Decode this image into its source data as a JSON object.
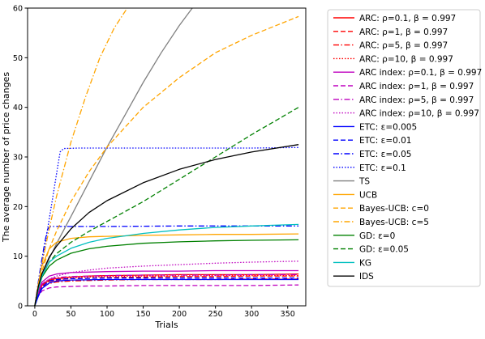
{
  "chart_data": {
    "type": "line",
    "title": "",
    "xlabel": "Trials",
    "ylabel": "The average number of price changes",
    "xlim": [
      -10,
      375
    ],
    "ylim": [
      0,
      60
    ],
    "x_ticks": [
      0,
      50,
      100,
      150,
      200,
      250,
      300,
      350
    ],
    "y_ticks": [
      0,
      10,
      20,
      30,
      40,
      50,
      60
    ],
    "x_tick_labels": [
      "0",
      "50",
      "100",
      "150",
      "200",
      "250",
      "300",
      "350"
    ],
    "y_tick_labels": [
      "0",
      "10",
      "20",
      "30",
      "40",
      "50",
      "60"
    ],
    "grid": false,
    "legend_position": "outside right",
    "series": [
      {
        "name": "ARC: ρ=0.1, β = 0.997",
        "color": "#ff0000",
        "dash": "solid",
        "x": [
          0,
          5,
          10,
          20,
          30,
          50,
          75,
          100,
          150,
          200,
          250,
          300,
          365
        ],
        "y": [
          0,
          2.6,
          4.2,
          5.2,
          5.5,
          5.8,
          6.0,
          6.1,
          6.2,
          6.3,
          6.3,
          6.3,
          6.4
        ]
      },
      {
        "name": "ARC: ρ=1, β = 0.997",
        "color": "#ff0000",
        "dash": "dashed",
        "x": [
          0,
          5,
          10,
          20,
          30,
          50,
          75,
          100,
          150,
          200,
          250,
          300,
          365
        ],
        "y": [
          0,
          2.5,
          4.0,
          4.9,
          5.2,
          5.5,
          5.6,
          5.7,
          5.8,
          5.9,
          5.9,
          6.0,
          6.0
        ]
      },
      {
        "name": "ARC: ρ=5, β = 0.997",
        "color": "#ff0000",
        "dash": "dashdot",
        "x": [
          0,
          5,
          10,
          20,
          30,
          50,
          75,
          100,
          150,
          200,
          250,
          300,
          365
        ],
        "y": [
          0,
          2.3,
          3.8,
          4.5,
          4.8,
          5.0,
          5.1,
          5.2,
          5.3,
          5.3,
          5.3,
          5.4,
          5.4
        ]
      },
      {
        "name": "ARC: ρ=10, β = 0.997",
        "color": "#ff0000",
        "dash": "dotted",
        "x": [
          0,
          5,
          10,
          20,
          30,
          50,
          75,
          100,
          150,
          200,
          250,
          300,
          365
        ],
        "y": [
          0,
          2.5,
          4.1,
          5.0,
          5.3,
          5.6,
          5.8,
          5.9,
          6.0,
          6.0,
          6.1,
          6.1,
          6.1
        ]
      },
      {
        "name": "ARC index: ρ=0.1, β = 0.997",
        "color": "#bf00bf",
        "dash": "solid",
        "x": [
          0,
          5,
          10,
          20,
          30,
          50,
          75,
          100,
          150,
          200,
          250,
          300,
          365
        ],
        "y": [
          0,
          3.0,
          4.8,
          6.0,
          6.4,
          6.7,
          6.8,
          6.9,
          7.0,
          7.0,
          7.1,
          7.1,
          7.1
        ]
      },
      {
        "name": "ARC index: ρ=1, β = 0.997",
        "color": "#bf00bf",
        "dash": "dashed",
        "x": [
          0,
          5,
          10,
          20,
          30,
          50,
          75,
          100,
          150,
          200,
          250,
          300,
          365
        ],
        "y": [
          0,
          2.0,
          3.0,
          3.6,
          3.8,
          3.9,
          4.0,
          4.0,
          4.1,
          4.1,
          4.1,
          4.1,
          4.2
        ]
      },
      {
        "name": "ARC index: ρ=5, β = 0.997",
        "color": "#bf00bf",
        "dash": "dashdot",
        "x": [
          0,
          5,
          10,
          20,
          30,
          50,
          75,
          100,
          150,
          200,
          250,
          300,
          365
        ],
        "y": [
          0,
          2.7,
          4.4,
          5.4,
          5.7,
          5.9,
          6.0,
          6.1,
          6.2,
          6.2,
          6.2,
          6.3,
          6.3
        ]
      },
      {
        "name": "ARC index: ρ=10, β = 0.997",
        "color": "#bf00bf",
        "dash": "dotted",
        "x": [
          0,
          5,
          10,
          20,
          30,
          50,
          75,
          100,
          150,
          200,
          250,
          300,
          365
        ],
        "y": [
          0,
          2.8,
          4.4,
          5.4,
          6.0,
          6.7,
          7.2,
          7.6,
          8.0,
          8.3,
          8.6,
          8.8,
          9.0
        ]
      },
      {
        "name": "ETC: ε=0.005",
        "color": "#0000ff",
        "dash": "solid",
        "x": [
          0,
          5,
          10,
          20,
          30,
          50,
          100,
          200,
          300,
          365
        ],
        "y": [
          0,
          2.0,
          3.5,
          4.6,
          5.0,
          5.2,
          5.3,
          5.3,
          5.3,
          5.3
        ]
      },
      {
        "name": "ETC: ε=0.01",
        "color": "#0000ff",
        "dash": "dashed",
        "x": [
          0,
          5,
          10,
          20,
          30,
          50,
          100,
          200,
          300,
          365
        ],
        "y": [
          0,
          2.2,
          3.8,
          5.0,
          5.3,
          5.5,
          5.6,
          5.6,
          5.6,
          5.6
        ]
      },
      {
        "name": "ETC: ε=0.05",
        "color": "#0000ff",
        "dash": "dashdot",
        "x": [
          0,
          3,
          6,
          10,
          14,
          18,
          22,
          30,
          50,
          100,
          200,
          300,
          365
        ],
        "y": [
          0,
          3.0,
          6.0,
          9.5,
          13.0,
          15.5,
          16.0,
          16.0,
          16.0,
          16.0,
          16.1,
          16.1,
          16.1
        ]
      },
      {
        "name": "ETC: ε=0.1",
        "color": "#0000ff",
        "dash": "dotted",
        "x": [
          0,
          5,
          10,
          15,
          20,
          25,
          30,
          35,
          40,
          60,
          100,
          200,
          300,
          365
        ],
        "y": [
          0,
          4.0,
          8.5,
          13.0,
          17.5,
          22.0,
          26.5,
          31.0,
          31.7,
          31.8,
          31.8,
          31.8,
          31.8,
          31.9
        ]
      },
      {
        "name": "TS",
        "color": "#808080",
        "dash": "solid",
        "x": [
          0,
          5,
          10,
          20,
          30,
          50,
          75,
          100,
          125,
          150,
          175,
          200,
          218
        ],
        "y": [
          0,
          3.5,
          6.0,
          9.5,
          12.5,
          18.0,
          25.0,
          32.0,
          38.5,
          45.0,
          51.0,
          56.5,
          60
        ]
      },
      {
        "name": "UCB",
        "color": "#ffa500",
        "dash": "solid",
        "x": [
          0,
          5,
          10,
          20,
          30,
          50,
          75,
          100,
          150,
          200,
          250,
          300,
          365
        ],
        "y": [
          0,
          4.5,
          8.0,
          11.5,
          12.8,
          13.6,
          13.9,
          14.0,
          14.2,
          14.3,
          14.4,
          14.4,
          14.5
        ]
      },
      {
        "name": "Bayes-UCB: c=0",
        "color": "#ffa500",
        "dash": "dashed",
        "x": [
          0,
          5,
          10,
          20,
          30,
          50,
          75,
          100,
          150,
          200,
          250,
          300,
          365
        ],
        "y": [
          0,
          4.0,
          7.0,
          11.5,
          15.0,
          21.0,
          27.0,
          32.0,
          40.0,
          46.0,
          51.0,
          54.5,
          58.3
        ]
      },
      {
        "name": "Bayes-UCB: c=5",
        "color": "#ffa500",
        "dash": "dashdot",
        "x": [
          0,
          5,
          10,
          20,
          30,
          50,
          70,
          90,
          110,
          128
        ],
        "y": [
          0,
          4.5,
          8.5,
          15.5,
          22.0,
          33.0,
          42.0,
          50.0,
          56.0,
          60
        ]
      },
      {
        "name": "GD: ε=0",
        "color": "#008000",
        "dash": "solid",
        "x": [
          0,
          5,
          10,
          20,
          30,
          50,
          75,
          100,
          150,
          200,
          250,
          300,
          365
        ],
        "y": [
          0,
          3.5,
          5.8,
          8.0,
          9.2,
          10.6,
          11.5,
          12.0,
          12.6,
          12.9,
          13.1,
          13.2,
          13.3
        ]
      },
      {
        "name": "GD: ε=0.05",
        "color": "#008000",
        "dash": "dashed",
        "x": [
          0,
          5,
          10,
          20,
          30,
          50,
          75,
          100,
          150,
          200,
          250,
          300,
          365
        ],
        "y": [
          0,
          3.5,
          6.0,
          8.8,
          10.5,
          12.8,
          15.0,
          17.0,
          21.0,
          25.5,
          30.0,
          34.5,
          40.0
        ]
      },
      {
        "name": "KG",
        "color": "#00bfbf",
        "dash": "solid",
        "x": [
          0,
          5,
          10,
          20,
          30,
          50,
          75,
          100,
          150,
          200,
          250,
          300,
          365
        ],
        "y": [
          0,
          3.5,
          6.0,
          8.8,
          10.0,
          11.6,
          12.8,
          13.6,
          14.6,
          15.3,
          15.8,
          16.1,
          16.4
        ]
      },
      {
        "name": "IDS",
        "color": "#000000",
        "dash": "solid",
        "x": [
          0,
          5,
          10,
          20,
          30,
          50,
          75,
          100,
          150,
          200,
          250,
          300,
          365
        ],
        "y": [
          0,
          4.0,
          6.5,
          9.8,
          12.0,
          15.5,
          18.8,
          21.2,
          24.8,
          27.5,
          29.5,
          31.0,
          32.5
        ]
      }
    ]
  }
}
